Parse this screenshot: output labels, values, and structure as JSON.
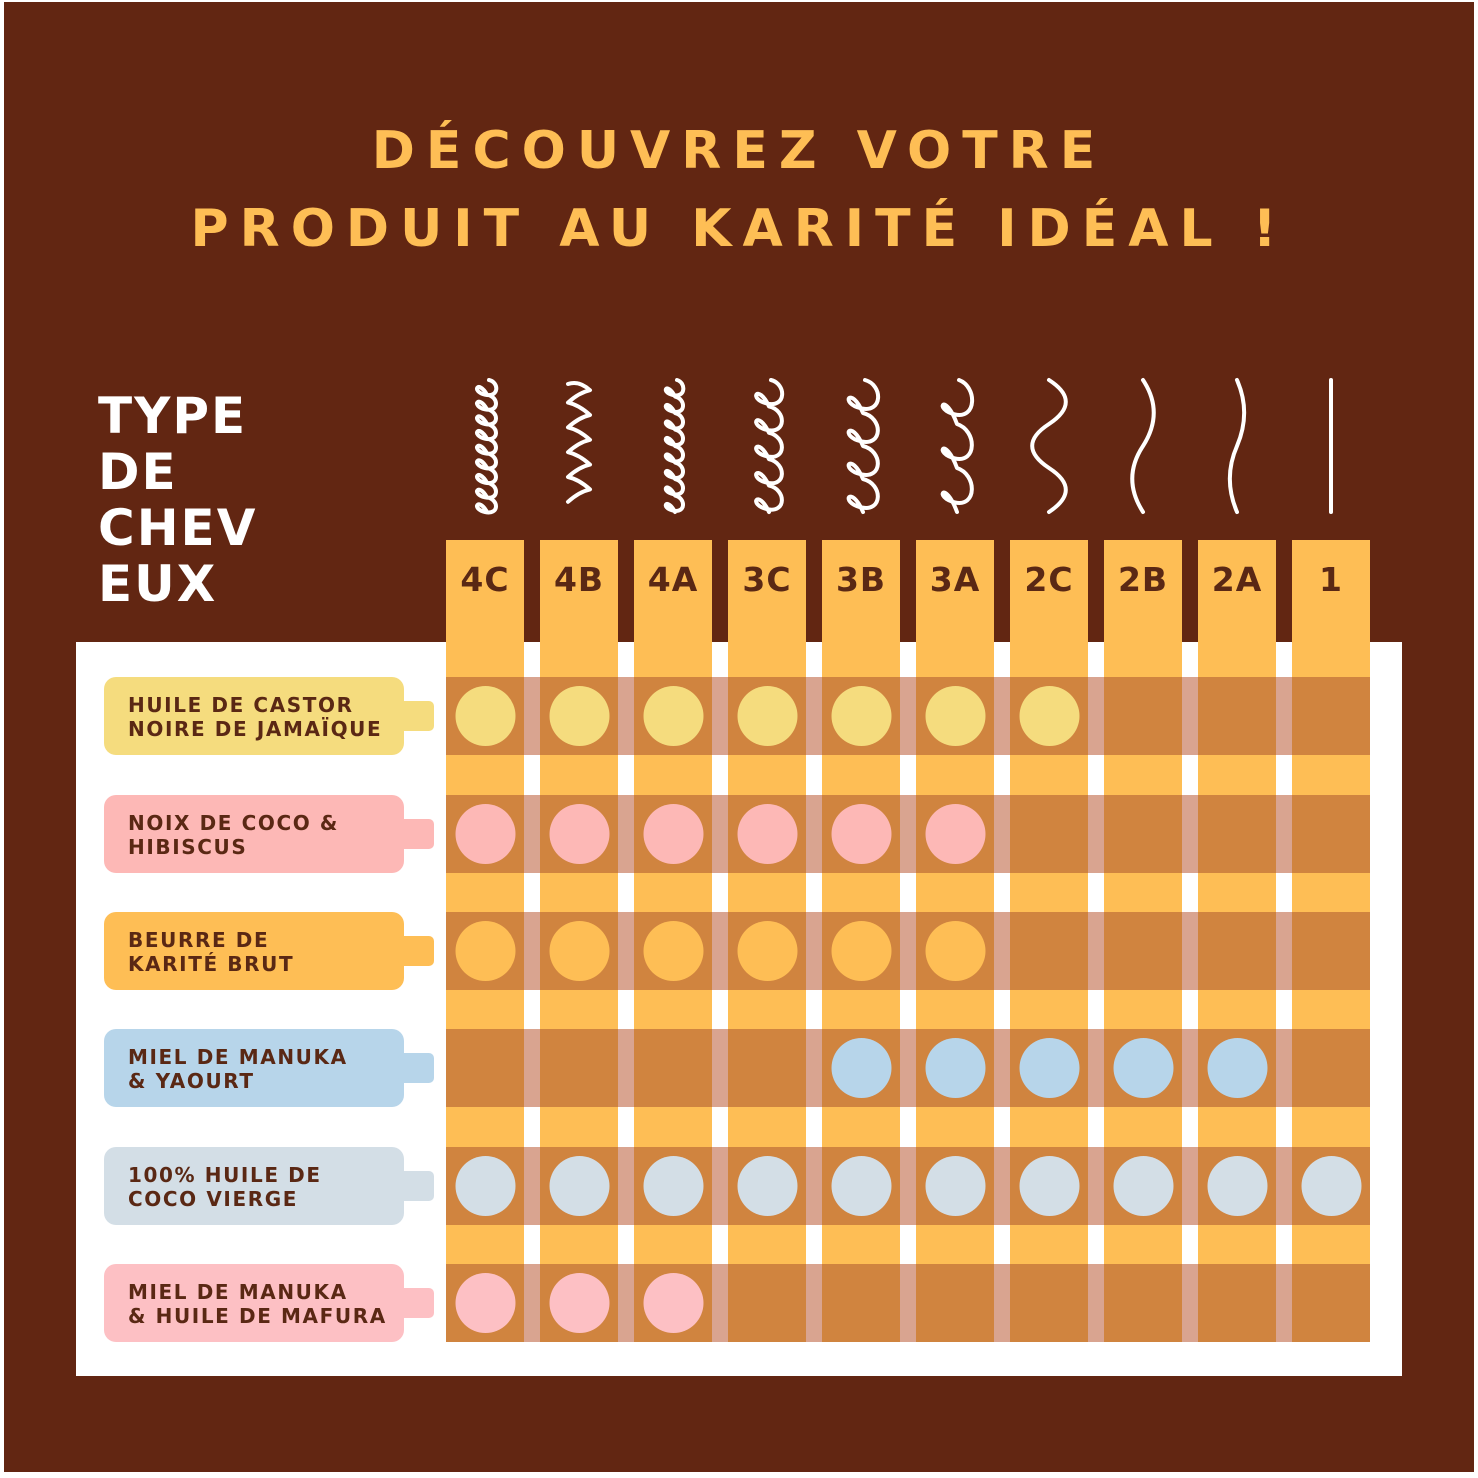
{
  "title": {
    "line1": "DÉCOUVREZ VOTRE",
    "line2": "PRODUIT AU KARITÉ IDÉAL !"
  },
  "hair_type_heading": {
    "line1": "TYPE",
    "line2": "DE",
    "line3": "CHEV",
    "line4": "EUX"
  },
  "hair_types": [
    {
      "code": "4C",
      "curl_icon": "tight-coil-icon"
    },
    {
      "code": "4B",
      "curl_icon": "zigzag-coil-icon"
    },
    {
      "code": "4A",
      "curl_icon": "small-coil-icon"
    },
    {
      "code": "3C",
      "curl_icon": "corkscrew-curl-icon"
    },
    {
      "code": "3B",
      "curl_icon": "springy-curl-icon"
    },
    {
      "code": "3A",
      "curl_icon": "loose-curl-icon"
    },
    {
      "code": "2C",
      "curl_icon": "s-wave-icon"
    },
    {
      "code": "2B",
      "curl_icon": "soft-wave-icon"
    },
    {
      "code": "2A",
      "curl_icon": "slight-wave-icon"
    },
    {
      "code": "1",
      "curl_icon": "straight-line-icon"
    }
  ],
  "products": [
    {
      "line1": "HUILE DE CASTOR",
      "line2": "NOIRE DE JAMAÏQUE",
      "color": "#F5DC7E",
      "dot_color": "#F5DC7E",
      "suitable": [
        true,
        true,
        true,
        true,
        true,
        true,
        true,
        false,
        false,
        false
      ]
    },
    {
      "line1": "NOIX DE COCO &",
      "line2": "HIBISCUS",
      "color": "#FDB8B6",
      "dot_color": "#FDB8B6",
      "suitable": [
        true,
        true,
        true,
        true,
        true,
        true,
        false,
        false,
        false,
        false
      ]
    },
    {
      "line1": "BEURRE DE",
      "line2": "KARITÉ BRUT",
      "color": "#FEBE55",
      "dot_color": "#FEBE55",
      "suitable": [
        true,
        true,
        true,
        true,
        true,
        true,
        false,
        false,
        false,
        false
      ]
    },
    {
      "line1": "MIEL DE MANUKA",
      "line2": "& YAOURT",
      "color": "#B7D5EA",
      "dot_color": "#B7D5EA",
      "suitable": [
        false,
        false,
        false,
        false,
        true,
        true,
        true,
        true,
        true,
        false
      ]
    },
    {
      "line1": "100% HUILE DE",
      "line2": "COCO VIERGE",
      "color": "#D3DEE6",
      "dot_color": "#D3DEE6",
      "suitable": [
        true,
        true,
        true,
        true,
        true,
        true,
        true,
        true,
        true,
        true
      ]
    },
    {
      "line1": "MIEL DE MANUKA",
      "line2": "& HUILE DE MAFURA",
      "color": "#FDC0C4",
      "dot_color": "#FDC0C4",
      "suitable": [
        true,
        true,
        true,
        false,
        false,
        false,
        false,
        false,
        false,
        false
      ]
    }
  ],
  "colors": {
    "background": "#622612",
    "accent": "#FEBE55",
    "row_band": "#D0843F",
    "column_tab": "#FEBE55",
    "text_dark": "#5A2814"
  }
}
